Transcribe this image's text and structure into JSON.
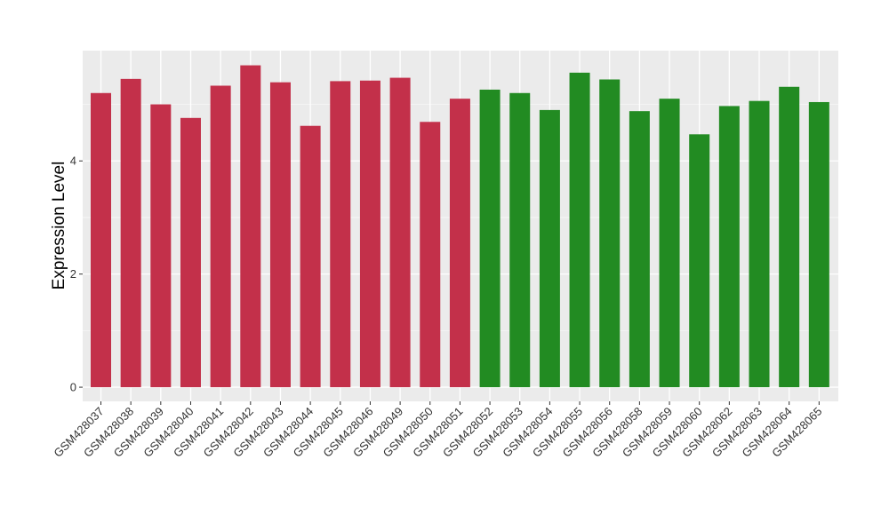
{
  "chart_data": {
    "type": "bar",
    "title": "",
    "xlabel": "",
    "ylabel": "Expression Level",
    "ylim": [
      -0.25,
      5.95
    ],
    "yticks": [
      0,
      2,
      4
    ],
    "grid": true,
    "legend": "none",
    "background_color": "#EBEBEB",
    "categories": [
      "GSM428037",
      "GSM428038",
      "GSM428039",
      "GSM428040",
      "GSM428041",
      "GSM428042",
      "GSM428043",
      "GSM428044",
      "GSM428045",
      "GSM428046",
      "GSM428049",
      "GSM428050",
      "GSM428051",
      "GSM428052",
      "GSM428053",
      "GSM428054",
      "GSM428055",
      "GSM428056",
      "GSM428058",
      "GSM428059",
      "GSM428060",
      "GSM428062",
      "GSM428063",
      "GSM428064",
      "GSM428065"
    ],
    "values": [
      5.2,
      5.45,
      5.0,
      4.76,
      5.33,
      5.69,
      5.39,
      4.62,
      5.41,
      5.42,
      5.47,
      4.69,
      5.1,
      5.26,
      5.2,
      4.9,
      5.56,
      5.44,
      4.88,
      5.1,
      4.47,
      4.97,
      5.06,
      5.31,
      5.04
    ],
    "bar_colors": [
      "#C3304A",
      "#C3304A",
      "#C3304A",
      "#C3304A",
      "#C3304A",
      "#C3304A",
      "#C3304A",
      "#C3304A",
      "#C3304A",
      "#C3304A",
      "#C3304A",
      "#C3304A",
      "#C3304A",
      "#228B22",
      "#228B22",
      "#228B22",
      "#228B22",
      "#228B22",
      "#228B22",
      "#228B22",
      "#228B22",
      "#228B22",
      "#228B22",
      "#228B22",
      "#228B22"
    ]
  }
}
